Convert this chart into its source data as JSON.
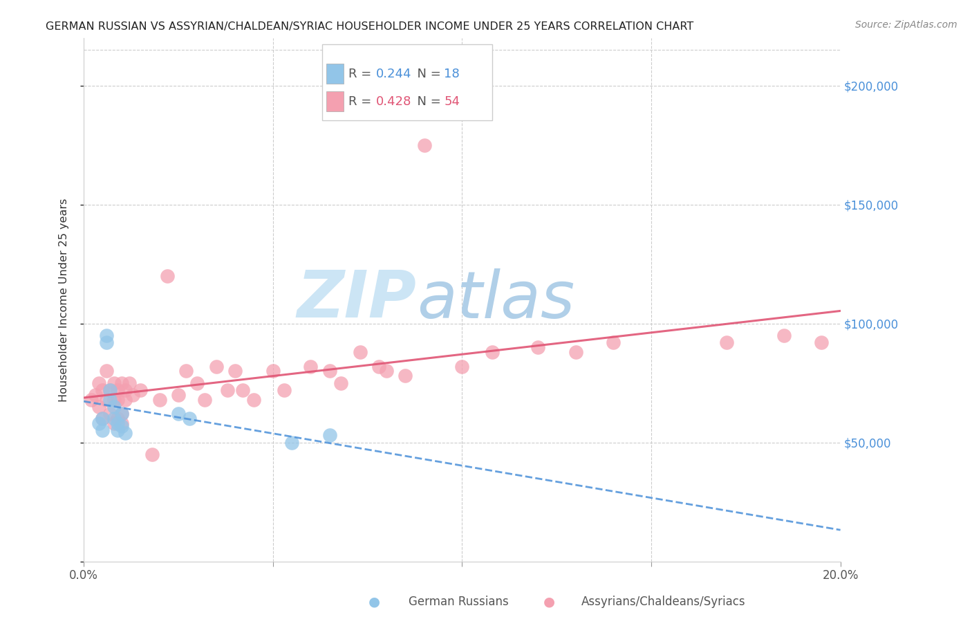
{
  "title": "GERMAN RUSSIAN VS ASSYRIAN/CHALDEAN/SYRIAC HOUSEHOLDER INCOME UNDER 25 YEARS CORRELATION CHART",
  "source": "Source: ZipAtlas.com",
  "ylabel": "Householder Income Under 25 years",
  "xlim": [
    0.0,
    0.2
  ],
  "ylim": [
    0,
    220000
  ],
  "legend_blue_R": "R = 0.244",
  "legend_blue_N": "N = 18",
  "legend_pink_R": "R = 0.428",
  "legend_pink_N": "N = 54",
  "blue_color": "#92c5e8",
  "pink_color": "#f4a0b0",
  "blue_line_color": "#4a90d9",
  "pink_line_color": "#e05575",
  "watermark_zip": "ZIP",
  "watermark_atlas": "atlas",
  "watermark_color_zip": "#cce5f5",
  "watermark_color_atlas": "#b8d4e8",
  "grid_color": "#cccccc",
  "right_tick_color": "#4a90d9",
  "blue_x": [
    0.004,
    0.005,
    0.005,
    0.006,
    0.006,
    0.007,
    0.007,
    0.008,
    0.008,
    0.009,
    0.009,
    0.01,
    0.01,
    0.011,
    0.025,
    0.028,
    0.055,
    0.065
  ],
  "blue_y": [
    58000,
    60000,
    55000,
    92000,
    95000,
    68000,
    72000,
    65000,
    60000,
    58000,
    55000,
    62000,
    57000,
    54000,
    62000,
    60000,
    50000,
    53000
  ],
  "pink_x": [
    0.002,
    0.003,
    0.004,
    0.004,
    0.005,
    0.005,
    0.006,
    0.006,
    0.007,
    0.007,
    0.008,
    0.008,
    0.008,
    0.009,
    0.009,
    0.009,
    0.01,
    0.01,
    0.01,
    0.011,
    0.011,
    0.012,
    0.013,
    0.015,
    0.018,
    0.02,
    0.022,
    0.025,
    0.027,
    0.03,
    0.032,
    0.035,
    0.038,
    0.04,
    0.042,
    0.045,
    0.05,
    0.053,
    0.06,
    0.065,
    0.068,
    0.073,
    0.078,
    0.08,
    0.085,
    0.09,
    0.1,
    0.108,
    0.12,
    0.13,
    0.14,
    0.17,
    0.185,
    0.195
  ],
  "pink_y": [
    68000,
    70000,
    65000,
    75000,
    60000,
    72000,
    68000,
    80000,
    62000,
    72000,
    58000,
    68000,
    75000,
    60000,
    68000,
    72000,
    62000,
    75000,
    58000,
    68000,
    72000,
    75000,
    70000,
    72000,
    45000,
    68000,
    120000,
    70000,
    80000,
    75000,
    68000,
    82000,
    72000,
    80000,
    72000,
    68000,
    80000,
    72000,
    82000,
    80000,
    75000,
    88000,
    82000,
    80000,
    78000,
    175000,
    82000,
    88000,
    90000,
    88000,
    92000,
    92000,
    95000,
    92000
  ]
}
